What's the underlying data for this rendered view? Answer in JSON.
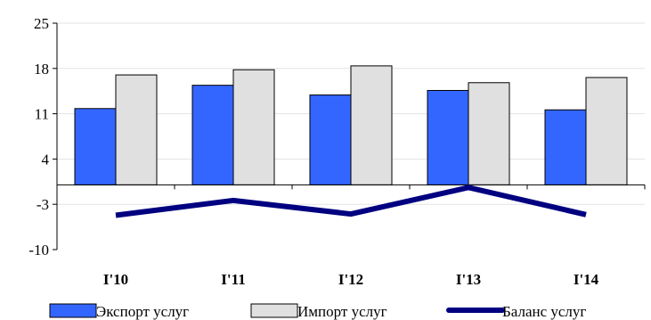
{
  "chart_data": {
    "type": "bar",
    "categories": [
      "I'10",
      "I'11",
      "I'12",
      "I'13",
      "I'14"
    ],
    "series": [
      {
        "name": "Экспорт услуг",
        "kind": "bar",
        "color": "#3366ff",
        "values": [
          11.8,
          15.4,
          13.9,
          14.6,
          11.6
        ]
      },
      {
        "name": "Импорт услуг",
        "kind": "bar",
        "color": "#e0e0e0",
        "values": [
          17.0,
          17.8,
          18.4,
          15.8,
          16.6
        ]
      },
      {
        "name": "Баланс услуг",
        "kind": "line",
        "color": "#000080",
        "values": [
          -4.7,
          -2.4,
          -4.5,
          -0.4,
          -4.6
        ]
      }
    ],
    "ylim": [
      -10,
      25
    ],
    "yticks": [
      -10,
      -3,
      4,
      11,
      18,
      25
    ],
    "ytick_labels": [
      "-10",
      "-3",
      "4",
      "11",
      "18",
      "25"
    ],
    "grid": true,
    "legend_position": "bottom"
  }
}
